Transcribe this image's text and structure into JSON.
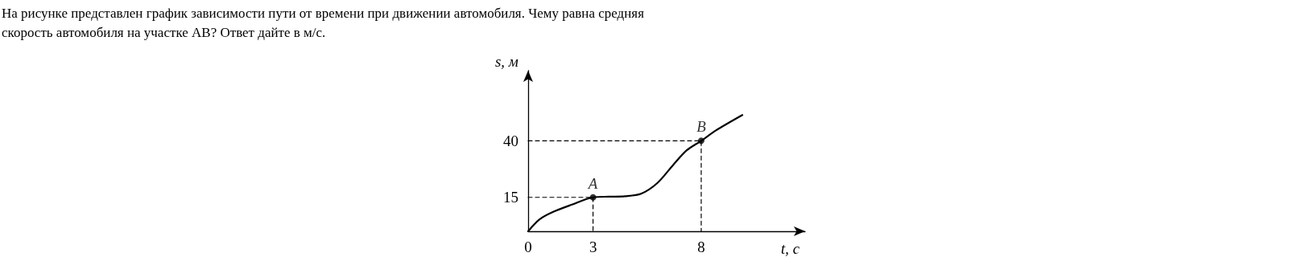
{
  "chart_data": {
    "type": "line",
    "title": "На рисунке представлен график зависимости пути от времени при движении автомобиля. Чему равна средняя скорость автомобиля на участке AB? Ответ дайте в м/с.",
    "xlabel": "t, с",
    "ylabel": "s, м",
    "xlim": [
      0,
      12.8
    ],
    "ylim": [
      0,
      71
    ],
    "xticks": [
      0,
      3,
      8
    ],
    "yticks": [
      15,
      40
    ],
    "grid": false,
    "marker": "none",
    "line_style": "solid",
    "series": [
      {
        "color": "#000000",
        "x": [
          0,
          0.52,
          1.14,
          2.0,
          3,
          3.74,
          4.48,
          5.22,
          5.97,
          6.71,
          7.33,
          8,
          8.68,
          9.9
        ],
        "values": [
          0,
          5.2,
          8.5,
          11.7,
          15,
          15.3,
          15.5,
          16.6,
          21.3,
          29.4,
          35.8,
          40,
          44.6,
          51.4
        ]
      },
      {
        "type": "line",
        "color": "#000000",
        "line_style": "dashed",
        "x": [
          0,
          3,
          3
        ],
        "values": [
          15,
          15,
          0
        ]
      },
      {
        "type": "line",
        "color": "#000000",
        "line_style": "dashed",
        "x": [
          0,
          8,
          8
        ],
        "values": [
          40,
          40,
          0
        ]
      },
      {
        "type": "scatter",
        "color": "#000000",
        "marker": "circle",
        "x": [
          3,
          8
        ],
        "values": [
          15,
          40
        ]
      }
    ],
    "annotations": [
      {
        "text": "A",
        "x": 3,
        "y": 15
      },
      {
        "text": "B",
        "x": 8,
        "y": 40
      }
    ]
  }
}
